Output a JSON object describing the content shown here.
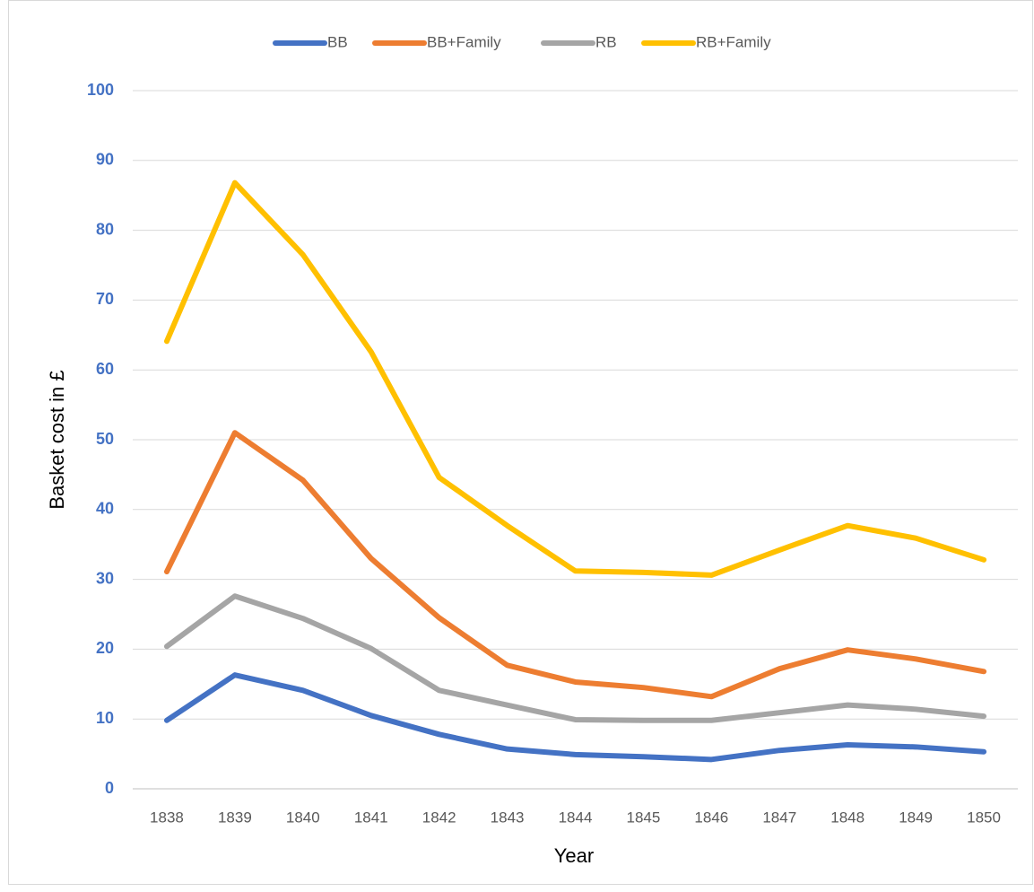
{
  "chart_data": {
    "type": "line",
    "x_label": "Year",
    "y_label": "Basket cost in £",
    "categories": [
      "1838",
      "1839",
      "1840",
      "1841",
      "1842",
      "1843",
      "1844",
      "1845",
      "1846",
      "1847",
      "1848",
      "1849",
      "1850"
    ],
    "series": [
      {
        "name": "BB",
        "color": "#4472c4",
        "values": [
          9.8,
          16.3,
          14.1,
          10.5,
          7.8,
          5.7,
          4.9,
          4.6,
          4.2,
          5.5,
          6.3,
          6.0,
          5.3
        ]
      },
      {
        "name": "BB+Family",
        "color": "#ed7d31",
        "values": [
          31.1,
          51.0,
          44.2,
          33.0,
          24.5,
          17.7,
          15.3,
          14.5,
          13.2,
          17.2,
          19.9,
          18.6,
          16.8
        ]
      },
      {
        "name": "RB",
        "color": "#a5a5a5",
        "values": [
          20.4,
          27.6,
          24.4,
          20.1,
          14.1,
          12.0,
          9.9,
          9.8,
          9.8,
          10.9,
          12.0,
          11.4,
          10.4
        ]
      },
      {
        "name": "RB+Family",
        "color": "#ffc000",
        "values": [
          64.1,
          86.8,
          76.5,
          62.6,
          44.6,
          37.7,
          31.2,
          31.0,
          30.6,
          34.2,
          37.7,
          35.9,
          32.8
        ]
      }
    ],
    "ylim": [
      0,
      100
    ],
    "yticks": [
      0,
      10,
      20,
      30,
      40,
      50,
      60,
      70,
      80,
      90,
      100
    ],
    "grid": true,
    "legend": "top"
  }
}
